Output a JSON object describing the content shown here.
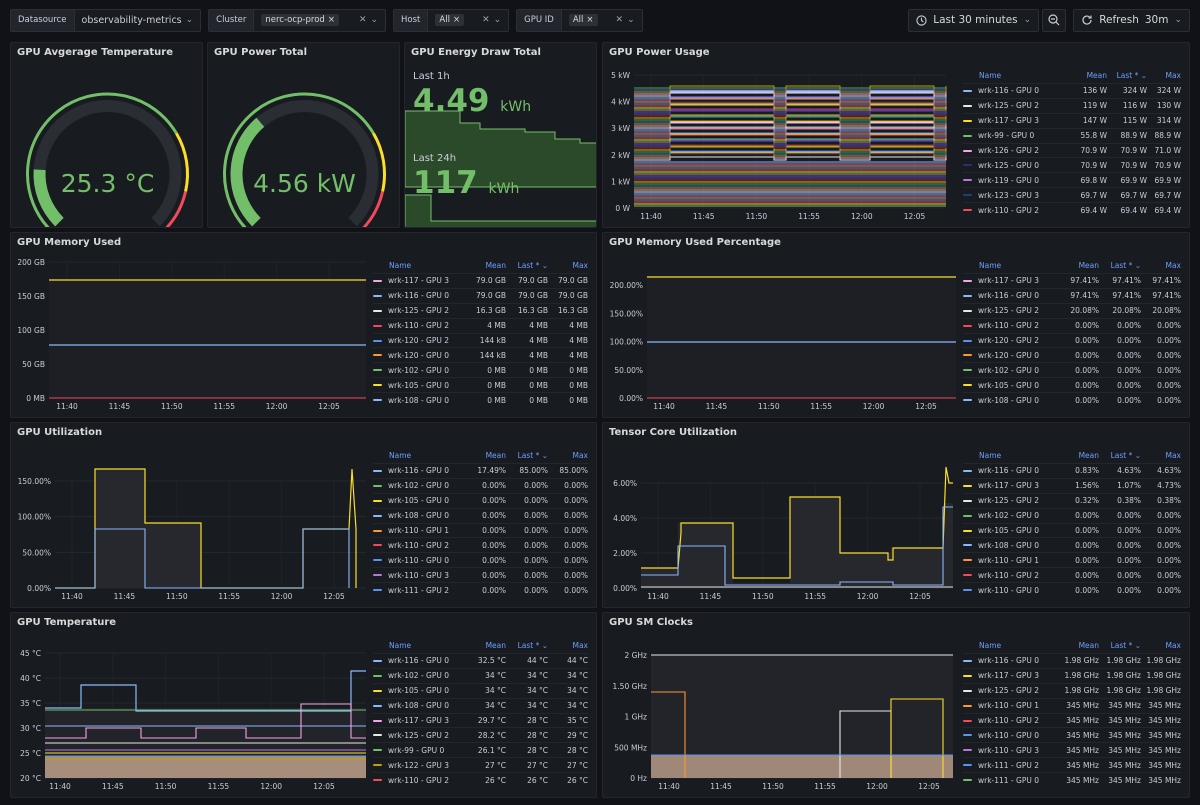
{
  "topbar": {
    "datasource": {
      "label": "Datasource",
      "value": "observability-metrics"
    },
    "cluster": {
      "label": "Cluster",
      "value": "nerc-ocp-prod"
    },
    "host": {
      "label": "Host",
      "value": "All"
    },
    "gpuid": {
      "label": "GPU ID",
      "value": "All"
    },
    "time_range": "Last 30 minutes",
    "refresh": {
      "label": "Refresh",
      "interval": "30m"
    }
  },
  "x_ticks": [
    "11:40",
    "11:45",
    "11:50",
    "11:55",
    "12:00",
    "12:05"
  ],
  "legend_headers": {
    "name": "Name",
    "mean": "Mean",
    "last": "Last *",
    "max": "Max"
  },
  "colors": {
    "green": "#73bf69",
    "yellow": "#fade2a",
    "red": "#f2495c",
    "blue": "#5794f2",
    "orange": "#ff9830",
    "purple": "#b877d9",
    "cyan": "#8ab8ff",
    "pink": "#f2a6e5",
    "white": "#e8e8e8",
    "olive": "#bfa100"
  },
  "panels": {
    "avg_temp": {
      "title": "GPU Avgerage Temperature",
      "value": "25.3 °C",
      "fraction": 0.18
    },
    "power_total": {
      "title": "GPU Power Total",
      "value": "4.56 kW",
      "fraction": 0.35
    },
    "energy": {
      "title": "GPU Energy Draw Total",
      "last1h_label": "Last 1h",
      "last1h_value": "4.49",
      "last24h_label": "Last 24h",
      "last24h_value": "117",
      "unit": "kWh"
    },
    "power_usage": {
      "title": "GPU Power Usage",
      "y_ticks": [
        "5 kW",
        "4 kW",
        "3 kW",
        "2 kW",
        "1 kW",
        "0 W"
      ],
      "legend": [
        [
          "wrk-116 - GPU 0",
          "136 W",
          "324 W",
          "324 W",
          "#8ab8ff"
        ],
        [
          "wrk-125 - GPU 2",
          "119 W",
          "116 W",
          "130 W",
          "#e8e8e8"
        ],
        [
          "wrk-117 - GPU 3",
          "147 W",
          "115 W",
          "314 W",
          "#fade2a"
        ],
        [
          "wrk-99 - GPU 0",
          "55.8 W",
          "88.9 W",
          "88.9 W",
          "#73bf69"
        ],
        [
          "wrk-126 - GPU 2",
          "70.9 W",
          "70.9 W",
          "71.0 W",
          "#f2a6e5"
        ],
        [
          "wrk-125 - GPU 0",
          "70.9 W",
          "70.9 W",
          "70.9 W",
          "#2b2f6e"
        ],
        [
          "wrk-119 - GPU 0",
          "69.8 W",
          "69.9 W",
          "69.9 W",
          "#b877d9"
        ],
        [
          "wrk-123 - GPU 3",
          "69.7 W",
          "69.7 W",
          "69.7 W",
          "#1f3f78"
        ],
        [
          "wrk-110 - GPU 2",
          "69.4 W",
          "69.4 W",
          "69.4 W",
          "#f2495c"
        ]
      ]
    },
    "mem_used": {
      "title": "GPU Memory Used",
      "y_ticks": [
        "200 GB",
        "150 GB",
        "100 GB",
        "50 GB",
        "0 MB"
      ],
      "legend": [
        [
          "wrk-117 - GPU 3",
          "79.0 GB",
          "79.0 GB",
          "79.0 GB",
          "#f2a6e5"
        ],
        [
          "wrk-116 - GPU 0",
          "79.0 GB",
          "79.0 GB",
          "79.0 GB",
          "#8ab8ff"
        ],
        [
          "wrk-125 - GPU 2",
          "16.3 GB",
          "16.3 GB",
          "16.3 GB",
          "#e8e8e8"
        ],
        [
          "wrk-110 - GPU 2",
          "4 MB",
          "4 MB",
          "4 MB",
          "#f2495c"
        ],
        [
          "wrk-120 - GPU 2",
          "144 kB",
          "4 MB",
          "4 MB",
          "#5794f2"
        ],
        [
          "wrk-120 - GPU 0",
          "144 kB",
          "4 MB",
          "4 MB",
          "#ff9830"
        ],
        [
          "wrk-102 - GPU 0",
          "0 MB",
          "0 MB",
          "0 MB",
          "#73bf69"
        ],
        [
          "wrk-105 - GPU 0",
          "0 MB",
          "0 MB",
          "0 MB",
          "#fade2a"
        ],
        [
          "wrk-108 - GPU 0",
          "0 MB",
          "0 MB",
          "0 MB",
          "#8ab8ff"
        ]
      ]
    },
    "mem_pct": {
      "title": "GPU Memory Used Percentage",
      "y_ticks": [
        "200.00%",
        "150.00%",
        "100.00%",
        "50.00%",
        "0.00%"
      ],
      "legend": [
        [
          "wrk-117 - GPU 3",
          "97.41%",
          "97.41%",
          "97.41%",
          "#f2a6e5"
        ],
        [
          "wrk-116 - GPU 0",
          "97.41%",
          "97.41%",
          "97.41%",
          "#8ab8ff"
        ],
        [
          "wrk-125 - GPU 2",
          "20.08%",
          "20.08%",
          "20.08%",
          "#e8e8e8"
        ],
        [
          "wrk-110 - GPU 2",
          "0.00%",
          "0.00%",
          "0.00%",
          "#f2495c"
        ],
        [
          "wrk-120 - GPU 2",
          "0.00%",
          "0.00%",
          "0.00%",
          "#5794f2"
        ],
        [
          "wrk-120 - GPU 0",
          "0.00%",
          "0.00%",
          "0.00%",
          "#ff9830"
        ],
        [
          "wrk-102 - GPU 0",
          "0.00%",
          "0.00%",
          "0.00%",
          "#73bf69"
        ],
        [
          "wrk-105 - GPU 0",
          "0.00%",
          "0.00%",
          "0.00%",
          "#fade2a"
        ],
        [
          "wrk-108 - GPU 0",
          "0.00%",
          "0.00%",
          "0.00%",
          "#8ab8ff"
        ]
      ]
    },
    "util": {
      "title": "GPU Utilization",
      "y_ticks": [
        "150.00%",
        "100.00%",
        "50.00%",
        "0.00%"
      ],
      "legend": [
        [
          "wrk-116 - GPU 0",
          "17.49%",
          "85.00%",
          "85.00%",
          "#8ab8ff"
        ],
        [
          "wrk-102 - GPU 0",
          "0.00%",
          "0.00%",
          "0.00%",
          "#73bf69"
        ],
        [
          "wrk-105 - GPU 0",
          "0.00%",
          "0.00%",
          "0.00%",
          "#fade2a"
        ],
        [
          "wrk-108 - GPU 0",
          "0.00%",
          "0.00%",
          "0.00%",
          "#8ab8ff"
        ],
        [
          "wrk-110 - GPU 1",
          "0.00%",
          "0.00%",
          "0.00%",
          "#ff9830"
        ],
        [
          "wrk-110 - GPU 2",
          "0.00%",
          "0.00%",
          "0.00%",
          "#f2495c"
        ],
        [
          "wrk-110 - GPU 0",
          "0.00%",
          "0.00%",
          "0.00%",
          "#5794f2"
        ],
        [
          "wrk-110 - GPU 3",
          "0.00%",
          "0.00%",
          "0.00%",
          "#b877d9"
        ],
        [
          "wrk-111 - GPU 2",
          "0.00%",
          "0.00%",
          "0.00%",
          "#5794f2"
        ]
      ]
    },
    "tensor": {
      "title": "Tensor Core Utilization",
      "y_ticks": [
        "6.00%",
        "4.00%",
        "2.00%",
        "0.00%"
      ],
      "legend": [
        [
          "wrk-116 - GPU 0",
          "0.83%",
          "4.63%",
          "4.63%",
          "#8ab8ff"
        ],
        [
          "wrk-117 - GPU 3",
          "1.56%",
          "1.07%",
          "4.73%",
          "#fade2a"
        ],
        [
          "wrk-125 - GPU 2",
          "0.32%",
          "0.38%",
          "0.38%",
          "#e8e8e8"
        ],
        [
          "wrk-102 - GPU 0",
          "0.00%",
          "0.00%",
          "0.00%",
          "#73bf69"
        ],
        [
          "wrk-105 - GPU 0",
          "0.00%",
          "0.00%",
          "0.00%",
          "#fade2a"
        ],
        [
          "wrk-108 - GPU 0",
          "0.00%",
          "0.00%",
          "0.00%",
          "#8ab8ff"
        ],
        [
          "wrk-110 - GPU 1",
          "0.00%",
          "0.00%",
          "0.00%",
          "#ff9830"
        ],
        [
          "wrk-110 - GPU 2",
          "0.00%",
          "0.00%",
          "0.00%",
          "#f2495c"
        ],
        [
          "wrk-110 - GPU 0",
          "0.00%",
          "0.00%",
          "0.00%",
          "#5794f2"
        ]
      ]
    },
    "temp": {
      "title": "GPU Temperature",
      "y_ticks": [
        "45 °C",
        "40 °C",
        "35 °C",
        "30 °C",
        "25 °C",
        "20 °C"
      ],
      "legend": [
        [
          "wrk-116 - GPU 0",
          "32.5 °C",
          "44 °C",
          "44 °C",
          "#8ab8ff"
        ],
        [
          "wrk-102 - GPU 0",
          "34 °C",
          "34 °C",
          "34 °C",
          "#73bf69"
        ],
        [
          "wrk-105 - GPU 0",
          "34 °C",
          "34 °C",
          "34 °C",
          "#fade2a"
        ],
        [
          "wrk-108 - GPU 0",
          "34 °C",
          "34 °C",
          "34 °C",
          "#8ab8ff"
        ],
        [
          "wrk-117 - GPU 3",
          "29.7 °C",
          "28 °C",
          "35 °C",
          "#f2a6e5"
        ],
        [
          "wrk-125 - GPU 2",
          "28.2 °C",
          "28 °C",
          "29 °C",
          "#e8e8e8"
        ],
        [
          "wrk-99 - GPU 0",
          "26.1 °C",
          "28 °C",
          "28 °C",
          "#73bf69"
        ],
        [
          "wrk-122 - GPU 3",
          "27 °C",
          "27 °C",
          "27 °C",
          "#bfa100"
        ],
        [
          "wrk-110 - GPU 2",
          "26 °C",
          "26 °C",
          "26 °C",
          "#f2495c"
        ]
      ]
    },
    "sm": {
      "title": "GPU SM Clocks",
      "y_ticks": [
        "2 GHz",
        "1.50 GHz",
        "1 GHz",
        "500 MHz",
        "0 Hz"
      ],
      "legend": [
        [
          "wrk-116 - GPU 0",
          "1.98 GHz",
          "1.98 GHz",
          "1.98 GHz",
          "#8ab8ff"
        ],
        [
          "wrk-117 - GPU 3",
          "1.98 GHz",
          "1.98 GHz",
          "1.98 GHz",
          "#fade2a"
        ],
        [
          "wrk-125 - GPU 2",
          "1.98 GHz",
          "1.98 GHz",
          "1.98 GHz",
          "#e8e8e8"
        ],
        [
          "wrk-110 - GPU 1",
          "345 MHz",
          "345 MHz",
          "345 MHz",
          "#ff9830"
        ],
        [
          "wrk-110 - GPU 2",
          "345 MHz",
          "345 MHz",
          "345 MHz",
          "#f2495c"
        ],
        [
          "wrk-110 - GPU 0",
          "345 MHz",
          "345 MHz",
          "345 MHz",
          "#5794f2"
        ],
        [
          "wrk-110 - GPU 3",
          "345 MHz",
          "345 MHz",
          "345 MHz",
          "#b877d9"
        ],
        [
          "wrk-111 - GPU 2",
          "345 MHz",
          "345 MHz",
          "345 MHz",
          "#5794f2"
        ],
        [
          "wrk-111 - GPU 0",
          "345 MHz",
          "345 MHz",
          "345 MHz",
          "#73bf69"
        ]
      ]
    }
  }
}
